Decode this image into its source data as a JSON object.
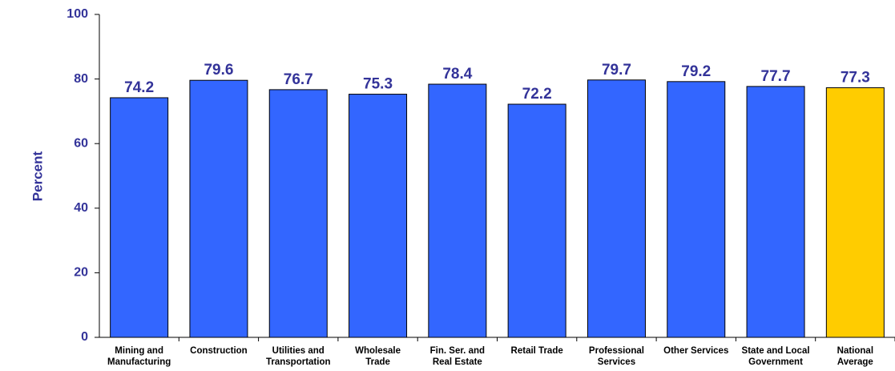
{
  "chart_data": {
    "type": "bar",
    "y_label": "Percent",
    "categories": [
      "Mining and\nManufacturing",
      "Construction",
      "Utilities and\nTransportation",
      "Wholesale\nTrade",
      "Fin. Ser. and\nReal Estate",
      "Retail Trade",
      "Professional\nServices",
      "Other Services",
      "State and Local\nGovernment",
      "National\nAverage"
    ],
    "values": [
      74.2,
      79.6,
      76.7,
      75.3,
      78.4,
      72.2,
      79.7,
      79.2,
      77.7,
      77.3
    ],
    "colors": [
      "#3366ff",
      "#3366ff",
      "#3366ff",
      "#3366ff",
      "#3366ff",
      "#3366ff",
      "#3366ff",
      "#3366ff",
      "#3366ff",
      "#ffcc00"
    ],
    "ylim": [
      0,
      100
    ],
    "yticks": [
      0,
      20,
      40,
      60,
      80,
      100
    ],
    "grid": false
  }
}
